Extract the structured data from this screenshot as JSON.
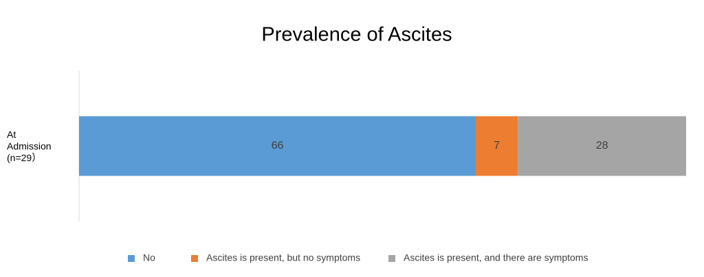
{
  "chart_data": {
    "type": "bar",
    "orientation": "horizontal",
    "stacked": true,
    "title": "Prevalence of Ascites",
    "categories": [
      "At Admission (n=29）"
    ],
    "series": [
      {
        "name": "No",
        "color": "#5b9bd5",
        "values": [
          66
        ]
      },
      {
        "name": "Ascites is present, but no symptoms",
        "color": "#ed7d31",
        "values": [
          7
        ]
      },
      {
        "name": "Ascites is present, and there are symptoms",
        "color": "#a5a5a5",
        "values": [
          28
        ]
      }
    ],
    "legend": "bottom"
  }
}
